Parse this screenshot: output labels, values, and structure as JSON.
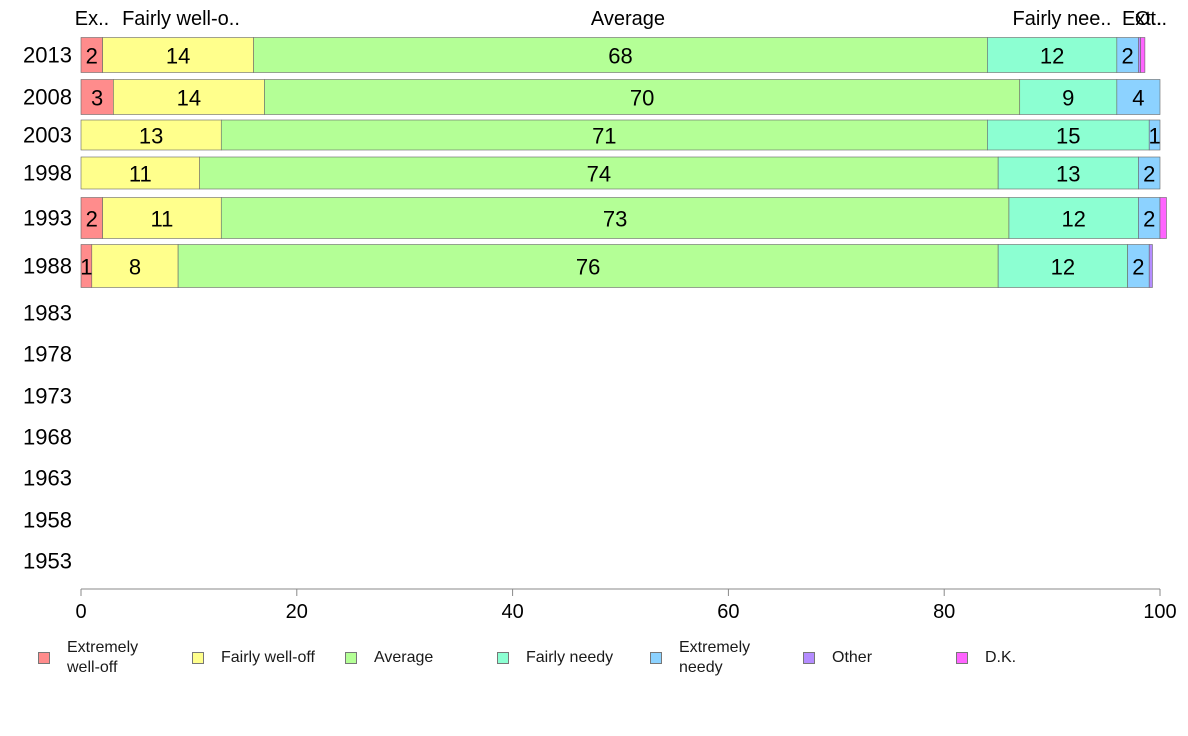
{
  "chart_data": {
    "type": "bar",
    "orientation": "horizontal",
    "stacked": true,
    "categories": [
      "2013",
      "2008",
      "2003",
      "1998",
      "1993",
      "1988",
      "1983",
      "1978",
      "1973",
      "1968",
      "1963",
      "1958",
      "1953"
    ],
    "series": [
      {
        "name": "Extremely\nwell-off",
        "color": "#ff8c8c",
        "values": [
          2,
          3,
          0,
          0,
          2,
          1,
          null,
          null,
          null,
          null,
          null,
          null,
          null
        ]
      },
      {
        "name": "Fairly well-off",
        "color": "#ffff8c",
        "values": [
          14,
          14,
          13,
          11,
          11,
          8,
          null,
          null,
          null,
          null,
          null,
          null,
          null
        ]
      },
      {
        "name": "Average",
        "color": "#b4ff96",
        "values": [
          68,
          70,
          71,
          74,
          73,
          76,
          null,
          null,
          null,
          null,
          null,
          null,
          null
        ]
      },
      {
        "name": "Fairly needy",
        "color": "#8cffd2",
        "values": [
          12,
          9,
          15,
          13,
          12,
          12,
          null,
          null,
          null,
          null,
          null,
          null,
          null
        ]
      },
      {
        "name": "Extremely\nneedy",
        "color": "#8cd2ff",
        "values": [
          2,
          4,
          1,
          2,
          2,
          2,
          null,
          null,
          null,
          null,
          null,
          null,
          null
        ]
      },
      {
        "name": "Other",
        "color": "#b48cff",
        "values": [
          0.2,
          0,
          0,
          0,
          0,
          0.3,
          null,
          null,
          null,
          null,
          null,
          null,
          null
        ]
      },
      {
        "name": "D.K.",
        "color": "#ff64ff",
        "values": [
          0.4,
          0,
          0,
          0,
          0.6,
          0,
          null,
          null,
          null,
          null,
          null,
          null,
          null
        ]
      }
    ],
    "top_labels": [
      "Ex..",
      "Fairly well-o..",
      "Average",
      "Fairly nee..",
      "Ext..",
      "Ot.."
    ],
    "xlim": [
      0,
      100
    ],
    "xticks": [
      0,
      20,
      40,
      60,
      80,
      100
    ],
    "grid": false,
    "legend_position": "bottom"
  }
}
